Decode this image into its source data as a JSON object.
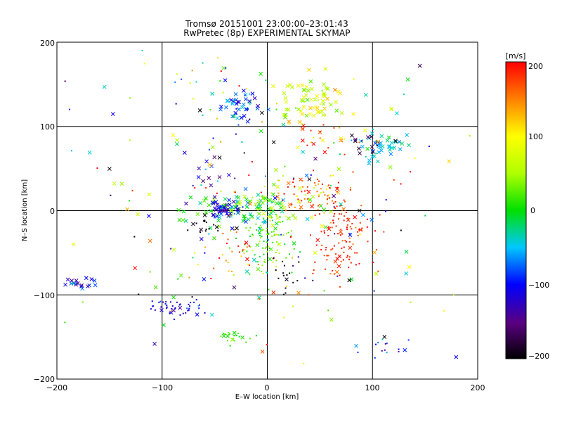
{
  "title_line1": "Tromsø 20151001 23:00:00–23:01:43",
  "title_line2": "RwPretec (8p) EXPERIMENTAL SKYMAP",
  "chart_data": {
    "type": "scatter",
    "xlabel": "E–W location [km]",
    "ylabel": "N–S location [km]",
    "xlim": [
      -200,
      200
    ],
    "ylim": [
      -200,
      200
    ],
    "xticks": [
      "−200",
      "−100",
      "0",
      "100",
      "200"
    ],
    "yticks": [
      "200",
      "100",
      "0",
      "−100",
      "−200"
    ],
    "grid": "lines at ±100 and 0 km",
    "colorbar": {
      "label": "[m/s]",
      "range": [
        -200,
        200
      ],
      "ticks": [
        "200",
        "100",
        "0",
        "−100",
        "−200"
      ],
      "colormap": "rainbow (black-purple-blue-cyan-green-yellow-red)"
    },
    "markers": {
      "cross": "x marker",
      "dot": "small filled point"
    },
    "clusters": [
      {
        "cx": -25,
        "cy": 125,
        "sx": 8,
        "sy": 9,
        "n": 45,
        "v": -80,
        "vs": 30,
        "m": "x"
      },
      {
        "cx": -55,
        "cy": 150,
        "sx": 30,
        "sy": 20,
        "n": 25,
        "v": 20,
        "vs": 90,
        "m": "mix"
      },
      {
        "cx": 45,
        "cy": 130,
        "sx": 14,
        "sy": 16,
        "n": 70,
        "v": 70,
        "vs": 30,
        "m": "x"
      },
      {
        "cx": 50,
        "cy": 95,
        "sx": 15,
        "sy": 12,
        "n": 25,
        "v": 150,
        "vs": 40,
        "m": "mix"
      },
      {
        "cx": 110,
        "cy": 75,
        "sx": 10,
        "sy": 8,
        "n": 40,
        "v": -40,
        "vs": 25,
        "m": "x"
      },
      {
        "cx": 100,
        "cy": 80,
        "sx": 12,
        "sy": 8,
        "n": 12,
        "v": -185,
        "vs": 10,
        "m": "x"
      },
      {
        "cx": -10,
        "cy": 2,
        "sx": 28,
        "sy": 10,
        "n": 130,
        "v": 0,
        "vs": 40,
        "m": "x"
      },
      {
        "cx": 0,
        "cy": -35,
        "sx": 12,
        "sy": 20,
        "n": 110,
        "v": 20,
        "vs": 30,
        "m": "dot"
      },
      {
        "cx": 70,
        "cy": -30,
        "sx": 14,
        "sy": 28,
        "n": 120,
        "v": 185,
        "vs": 15,
        "m": "dot"
      },
      {
        "cx": 45,
        "cy": 20,
        "sx": 18,
        "sy": 12,
        "n": 80,
        "v": 160,
        "vs": 40,
        "m": "dot"
      },
      {
        "cx": -42,
        "cy": 2,
        "sx": 8,
        "sy": 5,
        "n": 40,
        "v": -120,
        "vs": 25,
        "m": "x"
      },
      {
        "cx": -60,
        "cy": -20,
        "sx": 6,
        "sy": 6,
        "n": 15,
        "v": -200,
        "vs": 10,
        "m": "dot"
      },
      {
        "cx": -50,
        "cy": 40,
        "sx": 10,
        "sy": 10,
        "n": 15,
        "v": -140,
        "vs": 50,
        "m": "x"
      },
      {
        "cx": -30,
        "cy": -45,
        "sx": 12,
        "sy": 18,
        "n": 35,
        "v": 150,
        "vs": 50,
        "m": "dot"
      },
      {
        "cx": 15,
        "cy": -80,
        "sx": 6,
        "sy": 10,
        "n": 15,
        "v": -200,
        "vs": 10,
        "m": "dot"
      },
      {
        "cx": -90,
        "cy": -115,
        "sx": 14,
        "sy": 6,
        "n": 45,
        "v": -110,
        "vs": 20,
        "m": "dot"
      },
      {
        "cx": -35,
        "cy": -150,
        "sx": 9,
        "sy": 4,
        "n": 25,
        "v": 20,
        "vs": 15,
        "m": "dot"
      },
      {
        "cx": -180,
        "cy": -88,
        "sx": 10,
        "sy": 4,
        "n": 20,
        "v": -100,
        "vs": 40,
        "m": "x"
      },
      {
        "cx": 110,
        "cy": -160,
        "sx": 12,
        "sy": 6,
        "n": 15,
        "v": -110,
        "vs": 50,
        "m": "dot"
      },
      {
        "cx": 0,
        "cy": 0,
        "sx": 110,
        "sy": 90,
        "n": 220,
        "v": 0,
        "vs": 130,
        "m": "mix"
      }
    ]
  }
}
